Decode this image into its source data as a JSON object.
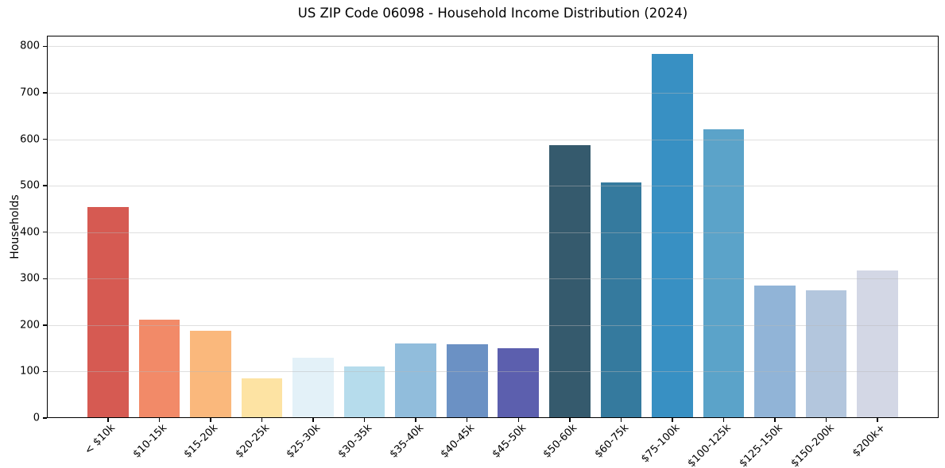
{
  "chart_data": {
    "type": "bar",
    "title": "US ZIP Code 06098 - Household Income Distribution (2024)",
    "xlabel": "",
    "ylabel": "Households",
    "categories": [
      "< $10k",
      "$10-15k",
      "$15-20k",
      "$20-25k",
      "$25-30k",
      "$30-35k",
      "$35-40k",
      "$40-45k",
      "$45-50k",
      "$50-60k",
      "$60-75k",
      "$75-100k",
      "$100-125k",
      "$125-150k",
      "$150-200k",
      "$200k+"
    ],
    "values": [
      455,
      212,
      187,
      85,
      130,
      111,
      161,
      158,
      151,
      587,
      507,
      784,
      621,
      285,
      275,
      318
    ],
    "bar_colors": [
      "#d65a52",
      "#f28a68",
      "#fab87c",
      "#fde3a3",
      "#e3f1f8",
      "#b6dcec",
      "#91bddc",
      "#6b91c4",
      "#5c5fae",
      "#355a6d",
      "#357a9e",
      "#3890c3",
      "#5ba3c9",
      "#91b4d7",
      "#b3c6dd",
      "#d3d7e5"
    ],
    "yticks": [
      0,
      100,
      200,
      300,
      400,
      500,
      600,
      700,
      800
    ],
    "ylim": [
      0,
      823
    ],
    "xlim": [
      -1.19,
      16.19
    ],
    "bar_width_units": 0.8,
    "grid": "horizontal",
    "legend": "none"
  }
}
